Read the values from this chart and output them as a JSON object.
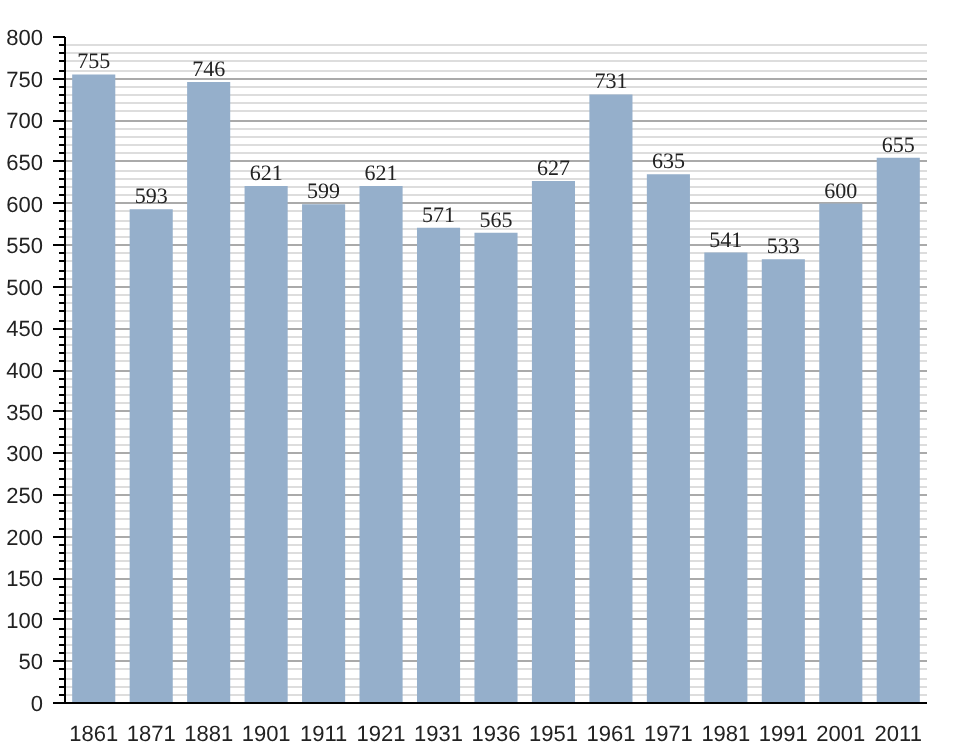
{
  "chart_data": {
    "type": "bar",
    "categories": [
      "1861",
      "1871",
      "1881",
      "1901",
      "1911",
      "1921",
      "1931",
      "1936",
      "1951",
      "1961",
      "1971",
      "1981",
      "1991",
      "2001",
      "2011"
    ],
    "values": [
      755,
      593,
      746,
      621,
      599,
      621,
      571,
      565,
      627,
      731,
      635,
      541,
      533,
      600,
      655
    ],
    "color": "#95afcb",
    "ylim": [
      0,
      800
    ],
    "yticks": [
      0,
      50,
      100,
      150,
      200,
      250,
      300,
      350,
      400,
      450,
      500,
      550,
      600,
      650,
      700,
      750,
      800
    ],
    "grid": "y",
    "data_labels": true
  }
}
